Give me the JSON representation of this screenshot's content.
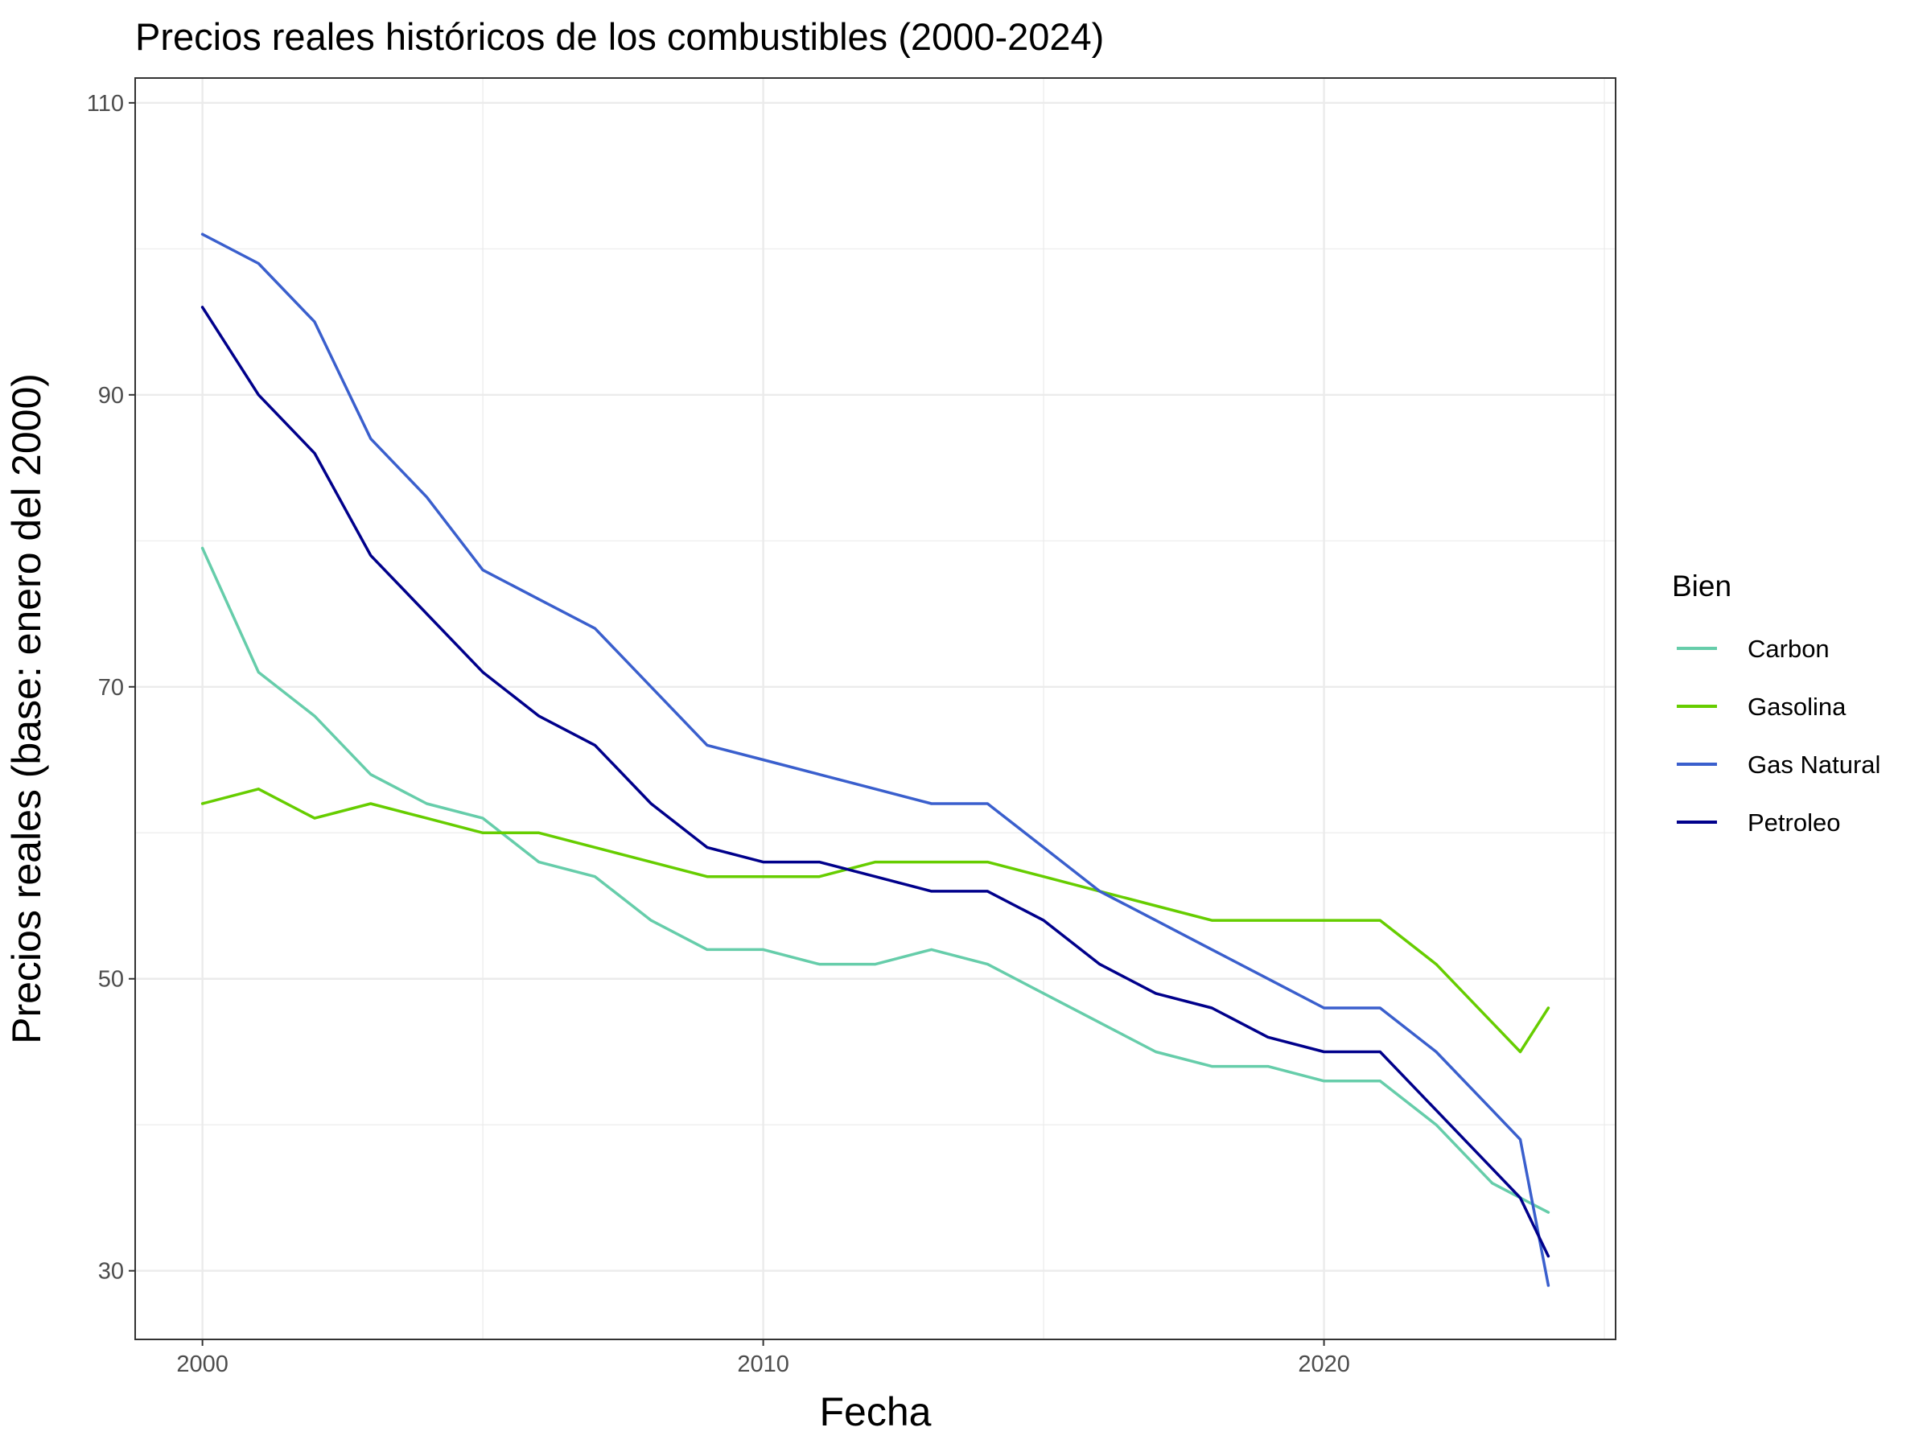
{
  "chart_data": {
    "type": "line",
    "title": "Precios reales históricos de los combustibles (2000-2024)",
    "xlabel": "Fecha",
    "ylabel": "Precios reales (base: enero del 2000)",
    "x_ticks": [
      "2000",
      "2010",
      "2020"
    ],
    "y_ticks": [
      "30",
      "50",
      "70",
      "90",
      "110"
    ],
    "xlim": [
      1998.8,
      2025.2
    ],
    "ylim": [
      25.3,
      111.7
    ],
    "grid": true,
    "legend_title": "Bien",
    "legend_position": "right",
    "colors": {
      "Carbon": "#66CDAA",
      "Gasolina": "#66CD00",
      "Gas Natural": "#3A5FCD",
      "Petroleo": "#00008B"
    },
    "x": [
      2000.0,
      2001.0,
      2002.0,
      2003.0,
      2004.0,
      2005.0,
      2006.0,
      2007.0,
      2008.0,
      2009.0,
      2010.0,
      2011.0,
      2012.0,
      2013.0,
      2014.0,
      2015.0,
      2016.0,
      2017.0,
      2018.0,
      2019.0,
      2020.0,
      2021.0,
      2022.0,
      2023.0,
      2023.5,
      2024.0
    ],
    "series": [
      {
        "name": "Carbon",
        "values": [
          79.5,
          71,
          68,
          64,
          62,
          61,
          58,
          57,
          54,
          52,
          52,
          51,
          51,
          52,
          51,
          49,
          47,
          45,
          44,
          44,
          43,
          43,
          40,
          36,
          35,
          34
        ]
      },
      {
        "name": "Gasolina",
        "values": [
          62,
          63,
          61,
          62,
          61,
          60,
          60,
          59,
          58,
          57,
          57,
          57,
          58,
          58,
          58,
          57,
          56,
          55,
          54,
          54,
          54,
          54,
          51,
          47,
          45,
          48
        ]
      },
      {
        "name": "Gas Natural",
        "values": [
          101,
          99,
          95,
          87,
          83,
          78,
          76,
          74,
          70,
          66,
          65,
          64,
          63,
          62,
          62,
          59,
          56,
          54,
          52,
          50,
          48,
          48,
          45,
          41,
          39,
          29
        ]
      },
      {
        "name": "Petroleo",
        "values": [
          96,
          90,
          86,
          79,
          75,
          71,
          68,
          66,
          62,
          59,
          58,
          58,
          57,
          56,
          56,
          54,
          51,
          49,
          48,
          46,
          45,
          45,
          41,
          37,
          35,
          31
        ]
      }
    ]
  }
}
